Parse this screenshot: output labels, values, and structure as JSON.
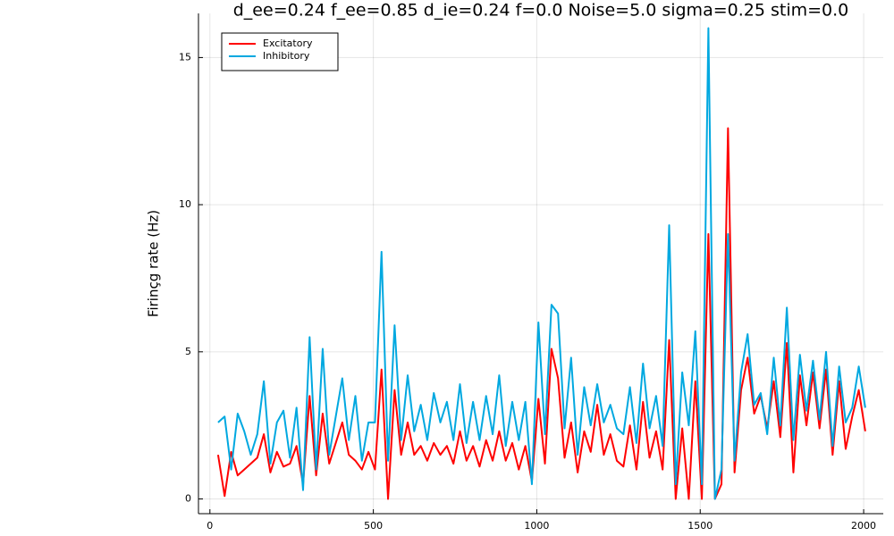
{
  "chart_data": {
    "type": "line",
    "title": "d_ee=0.24 f_ee=0.85 d_ie=0.24 f=0.0 Noise=5.0 sigma=0.25 stim=0.0",
    "y_label": "Firinçg rate (Hz)",
    "x": [
      25,
      45,
      65,
      85,
      105,
      125,
      145,
      165,
      185,
      205,
      225,
      245,
      265,
      285,
      305,
      325,
      345,
      365,
      385,
      405,
      425,
      445,
      465,
      485,
      505,
      525,
      545,
      565,
      585,
      605,
      625,
      645,
      665,
      685,
      705,
      725,
      745,
      765,
      785,
      805,
      825,
      845,
      865,
      885,
      905,
      925,
      945,
      965,
      985,
      1005,
      1025,
      1045,
      1065,
      1085,
      1105,
      1125,
      1145,
      1165,
      1185,
      1205,
      1225,
      1245,
      1265,
      1285,
      1305,
      1325,
      1345,
      1365,
      1385,
      1405,
      1425,
      1445,
      1465,
      1485,
      1505,
      1525,
      1545,
      1565,
      1585,
      1605,
      1625,
      1645,
      1665,
      1685,
      1705,
      1725,
      1745,
      1765,
      1785,
      1805,
      1825,
      1845,
      1865,
      1885,
      1905,
      1925,
      1945,
      1965,
      1985,
      2005
    ],
    "series": [
      {
        "name": "Excitatory",
        "color": "#ff0000",
        "values": [
          1.5,
          0.1,
          1.6,
          0.8,
          1.0,
          1.2,
          1.4,
          2.2,
          0.9,
          1.6,
          1.1,
          1.2,
          1.8,
          0.5,
          3.5,
          0.8,
          2.9,
          1.2,
          1.9,
          2.6,
          1.5,
          1.3,
          1.0,
          1.6,
          1.0,
          4.4,
          0.0,
          3.7,
          1.5,
          2.6,
          1.5,
          1.8,
          1.3,
          1.9,
          1.5,
          1.8,
          1.2,
          2.3,
          1.3,
          1.8,
          1.1,
          2.0,
          1.3,
          2.3,
          1.3,
          1.9,
          1.0,
          1.8,
          0.6,
          3.4,
          1.2,
          5.1,
          4.1,
          1.4,
          2.6,
          0.9,
          2.3,
          1.6,
          3.2,
          1.5,
          2.2,
          1.3,
          1.1,
          2.5,
          1.0,
          3.3,
          1.4,
          2.3,
          1.0,
          5.4,
          0.0,
          2.4,
          0.0,
          4.0,
          0.0,
          9.0,
          0.0,
          0.5,
          12.6,
          0.9,
          3.7,
          4.8,
          2.9,
          3.5,
          2.4,
          4.0,
          2.1,
          5.3,
          0.9,
          4.2,
          2.5,
          4.3,
          2.4,
          4.4,
          1.5,
          4.0,
          1.7,
          2.8,
          3.7,
          2.3
        ]
      },
      {
        "name": "Inhibitory",
        "color": "#00a8e0",
        "values": [
          2.6,
          2.8,
          1.0,
          2.9,
          2.3,
          1.5,
          2.2,
          4.0,
          1.2,
          2.6,
          3.0,
          1.4,
          3.1,
          0.3,
          5.5,
          1.0,
          5.1,
          1.5,
          2.8,
          4.1,
          2.0,
          3.5,
          1.3,
          2.6,
          2.6,
          8.4,
          1.3,
          5.9,
          2.0,
          4.2,
          2.3,
          3.2,
          2.0,
          3.6,
          2.6,
          3.3,
          2.0,
          3.9,
          1.9,
          3.3,
          2.0,
          3.5,
          2.2,
          4.2,
          1.8,
          3.3,
          2.0,
          3.3,
          0.5,
          6.0,
          2.2,
          6.6,
          6.3,
          2.4,
          4.8,
          1.5,
          3.8,
          2.5,
          3.9,
          2.6,
          3.2,
          2.4,
          2.2,
          3.8,
          1.9,
          4.6,
          2.4,
          3.5,
          1.8,
          9.3,
          0.5,
          4.3,
          2.5,
          5.7,
          0.5,
          16.0,
          0.0,
          1.0,
          9.0,
          1.3,
          4.3,
          5.6,
          3.2,
          3.6,
          2.2,
          4.8,
          2.5,
          6.5,
          2.0,
          4.9,
          3.0,
          4.7,
          2.7,
          5.0,
          1.8,
          4.5,
          2.6,
          3.1,
          4.5,
          3.1
        ]
      }
    ],
    "xlim": [
      -35,
      2060
    ],
    "ylim": [
      -0.5,
      16.5
    ],
    "xticks": [
      0,
      500,
      1000,
      1500,
      2000
    ],
    "yticks": [
      0,
      5,
      10,
      15
    ],
    "grid": true,
    "legend": "top-left"
  }
}
